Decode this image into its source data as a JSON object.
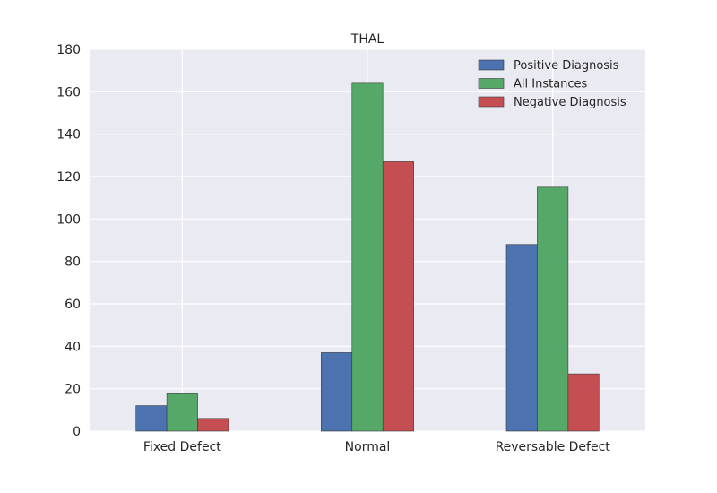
{
  "chart_data": {
    "type": "bar",
    "title": "THAL",
    "xlabel": "",
    "ylabel": "",
    "categories": [
      "Fixed Defect",
      "Normal",
      "Reversable Defect"
    ],
    "series": [
      {
        "name": "Positive Diagnosis",
        "values": [
          12,
          37,
          88
        ],
        "color": "#4c72b0"
      },
      {
        "name": "All Instances",
        "values": [
          18,
          164,
          115
        ],
        "color": "#55a868"
      },
      {
        "name": "Negative Diagnosis",
        "values": [
          6,
          127,
          27
        ],
        "color": "#c44e52"
      }
    ],
    "ylim": [
      0,
      180
    ],
    "yticks": [
      0,
      20,
      40,
      60,
      80,
      100,
      120,
      140,
      160,
      180
    ],
    "grid": true,
    "legend_position": "top-right",
    "background_color": "#eaeaf2"
  }
}
